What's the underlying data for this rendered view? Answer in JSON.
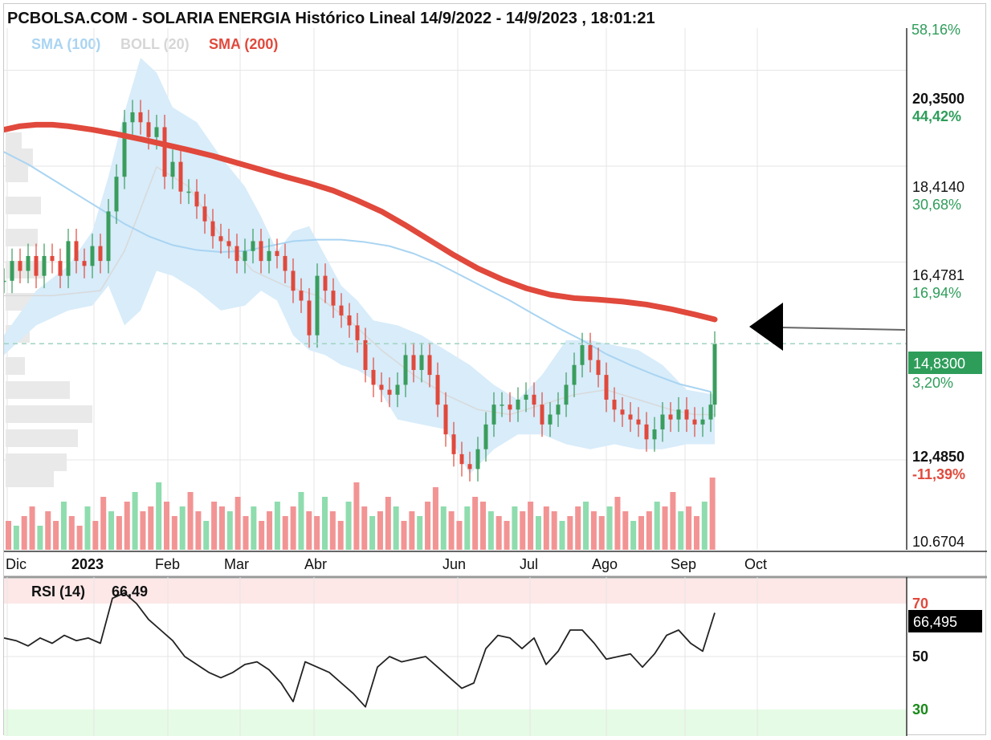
{
  "header": {
    "title": "PCBOLSA.COM - SOLARIA ENERGIA Histórico Lineal 14/9/2022 - 14/9/2023 , 18:01:21"
  },
  "legend": [
    {
      "label": "SMA (100)",
      "color": "#a9d4f2"
    },
    {
      "label": "BOLL (20)",
      "color": "#d6d6d6"
    },
    {
      "label": "SMA (200)",
      "color": "#e0493c"
    }
  ],
  "colors": {
    "up": "#3a9d5d",
    "down": "#e0493c",
    "vol_up": "#8fdcae",
    "vol_down": "#f29494",
    "band_fill": "#d8ecfa",
    "sma100": "#a9d4f2",
    "sma200": "#e0493c",
    "boll_mid": "#d9d9d9",
    "grid": "#e6e6e6",
    "rsi_line": "#222222",
    "rsi_over": "#fde7e7",
    "rsi_under": "#e5fbe5"
  },
  "chart_data": [
    {
      "type": "line",
      "name": "price",
      "period": "14/9/2022 - 14/9/2023",
      "x_tick_labels": [
        "Dic",
        "2023",
        "Feb",
        "Mar",
        "Abr",
        "Jun",
        "Jul",
        "Ago",
        "Sep",
        "Oct"
      ],
      "y_ticks": [
        {
          "value": "20,3500",
          "pct": "44,42%",
          "pct_color": "#2e9d5a",
          "bold": true
        },
        {
          "value": "18,4140",
          "pct": "30,68%",
          "pct_color": "#2e9d5a",
          "bold": false
        },
        {
          "value": "16,4781",
          "pct": "16,94%",
          "pct_color": "#2e9d5a",
          "bold": false
        },
        {
          "value": "12,4850",
          "pct": "-11,39%",
          "pct_color": "#e0493c",
          "bold": true
        },
        {
          "value": "10.6704",
          "pct": "",
          "pct_color": "#2e9d5a",
          "bold": false
        }
      ],
      "top_pct_partial": "58,16%",
      "last_price": {
        "value": "14,8300",
        "pct": "3,20%"
      },
      "ylim": [
        10.6704,
        21.2
      ],
      "series": [
        {
          "name": "SMA (100)",
          "x": [
            0,
            30,
            60,
            90,
            120,
            150,
            180,
            210,
            240,
            270,
            300,
            330,
            360,
            390,
            420,
            450,
            480,
            510,
            540,
            570,
            600,
            630,
            660,
            690,
            720,
            750,
            780,
            810,
            840,
            870,
            880
          ],
          "values": [
            18.7,
            18.45,
            18.15,
            17.85,
            17.55,
            17.25,
            17.0,
            16.82,
            16.72,
            16.68,
            16.7,
            16.8,
            16.9,
            16.93,
            16.93,
            16.88,
            16.8,
            16.65,
            16.45,
            16.2,
            15.95,
            15.7,
            15.42,
            15.15,
            14.9,
            14.62,
            14.4,
            14.2,
            14.02,
            13.9,
            13.86
          ]
        },
        {
          "name": "SMA (200)",
          "x": [
            0,
            20,
            40,
            60,
            80,
            110,
            140,
            170,
            200,
            230,
            260,
            290,
            320,
            350,
            380,
            410,
            440,
            470,
            500,
            530,
            560,
            590,
            620,
            650,
            680,
            710,
            740,
            770,
            800,
            830,
            860,
            885
          ],
          "values": [
            19.15,
            19.22,
            19.25,
            19.25,
            19.22,
            19.15,
            19.06,
            18.96,
            18.85,
            18.74,
            18.62,
            18.48,
            18.34,
            18.2,
            18.07,
            17.92,
            17.72,
            17.5,
            17.22,
            16.92,
            16.62,
            16.35,
            16.13,
            15.95,
            15.82,
            15.75,
            15.72,
            15.68,
            15.62,
            15.53,
            15.42,
            15.32
          ]
        },
        {
          "name": "BOLL upper",
          "x": [
            0,
            40,
            80,
            110,
            130,
            150,
            170,
            190,
            210,
            240,
            270,
            300,
            320,
            340,
            360,
            380,
            400,
            420,
            440,
            460,
            490,
            520,
            550,
            580,
            610,
            640,
            670,
            700,
            730,
            760,
            790,
            820,
            850,
            885
          ],
          "values": [
            15.0,
            15.9,
            16.4,
            17.1,
            18.2,
            19.5,
            20.6,
            20.3,
            19.6,
            19.3,
            18.6,
            18.0,
            17.4,
            16.7,
            17.1,
            17.2,
            16.6,
            16.0,
            15.7,
            15.3,
            15.2,
            15.0,
            14.7,
            14.4,
            14.0,
            13.7,
            14.2,
            14.9,
            14.9,
            14.8,
            14.7,
            14.4,
            13.9,
            13.8
          ]
        },
        {
          "name": "BOLL lower",
          "x": [
            0,
            40,
            80,
            110,
            130,
            150,
            170,
            190,
            210,
            240,
            270,
            300,
            320,
            340,
            360,
            380,
            400,
            420,
            440,
            460,
            490,
            520,
            550,
            580,
            610,
            640,
            670,
            700,
            730,
            760,
            790,
            820,
            850,
            885
          ],
          "values": [
            14.6,
            15.2,
            15.5,
            15.6,
            16.0,
            15.2,
            15.5,
            16.3,
            16.2,
            15.9,
            15.5,
            15.6,
            15.9,
            15.7,
            15.0,
            14.7,
            14.6,
            14.4,
            14.3,
            14.1,
            13.3,
            13.2,
            13.1,
            12.2,
            12.7,
            13.0,
            13.0,
            12.8,
            12.7,
            12.8,
            12.7,
            12.7,
            12.8,
            12.8
          ]
        },
        {
          "name": "BOLL mid",
          "x": [
            0,
            60,
            120,
            150,
            190,
            230,
            270,
            310,
            350,
            390,
            430,
            470,
            510,
            550,
            590,
            630,
            670,
            710,
            750,
            790,
            830,
            860,
            885
          ],
          "values": [
            15.8,
            15.8,
            15.9,
            16.7,
            18.4,
            18.0,
            17.0,
            16.3,
            16.0,
            15.8,
            15.3,
            14.7,
            14.2,
            13.8,
            13.5,
            13.4,
            13.6,
            13.8,
            13.9,
            13.7,
            13.5,
            13.4,
            13.4
          ]
        },
        {
          "name": "close",
          "x": [
            0,
            10,
            20,
            30,
            40,
            50,
            60,
            70,
            80,
            90,
            100,
            110,
            120,
            130,
            140,
            150,
            160,
            170,
            180,
            190,
            200,
            210,
            220,
            230,
            240,
            250,
            260,
            270,
            280,
            290,
            300,
            310,
            320,
            330,
            340,
            350,
            360,
            370,
            380,
            390,
            400,
            410,
            420,
            430,
            440,
            450,
            460,
            470,
            480,
            490,
            500,
            510,
            520,
            530,
            540,
            550,
            560,
            570,
            580,
            590,
            600,
            610,
            620,
            630,
            640,
            650,
            660,
            670,
            680,
            690,
            700,
            710,
            720,
            730,
            740,
            750,
            760,
            770,
            780,
            790,
            800,
            810,
            820,
            830,
            840,
            850,
            860,
            870,
            880,
            885
          ],
          "values": [
            16.1,
            16.5,
            16.3,
            16.6,
            16.2,
            16.6,
            16.5,
            16.2,
            16.9,
            16.5,
            16.4,
            16.8,
            16.5,
            17.5,
            18.2,
            19.3,
            19.5,
            19.3,
            19.0,
            19.2,
            18.2,
            18.5,
            17.9,
            17.9,
            17.6,
            17.3,
            17.0,
            16.9,
            16.8,
            16.5,
            16.7,
            16.9,
            16.5,
            16.7,
            16.6,
            16.3,
            15.9,
            15.7,
            15.0,
            16.2,
            15.9,
            15.6,
            15.4,
            15.2,
            14.9,
            14.3,
            14.0,
            13.9,
            13.8,
            14.0,
            14.6,
            14.3,
            14.6,
            14.2,
            13.6,
            13.0,
            12.6,
            12.4,
            12.3,
            12.7,
            13.2,
            13.6,
            13.6,
            13.5,
            13.7,
            13.8,
            13.6,
            13.2,
            13.4,
            13.6,
            14.0,
            14.4,
            14.8,
            14.5,
            14.2,
            13.7,
            13.5,
            13.4,
            13.3,
            13.2,
            12.9,
            13.1,
            13.4,
            13.3,
            13.5,
            13.3,
            13.2,
            13.3,
            13.6,
            14.83
          ]
        }
      ]
    },
    {
      "type": "bar",
      "name": "volume",
      "values": [
        6,
        5,
        7,
        9,
        5,
        8,
        6,
        10,
        7,
        5,
        9,
        6,
        11,
        8,
        7,
        10,
        12,
        8,
        9,
        14,
        10,
        7,
        9,
        12,
        8,
        6,
        10,
        9,
        8,
        11,
        7,
        9,
        6,
        8,
        10,
        7,
        9,
        12,
        8,
        7,
        11,
        8,
        6,
        10,
        14,
        9,
        7,
        8,
        11,
        9,
        6,
        8,
        7,
        10,
        13,
        9,
        8,
        6,
        9,
        11,
        10,
        8,
        7,
        6,
        9,
        8,
        10,
        7,
        9,
        8,
        6,
        7,
        9,
        10,
        8,
        7,
        9,
        11,
        8,
        6,
        7,
        8,
        10,
        9,
        12,
        8,
        9,
        7,
        10,
        15
      ]
    },
    {
      "type": "line",
      "name": "rsi",
      "legend_label": "RSI (14)",
      "legend_value": "66,49",
      "current_value": "66,495",
      "levels": [
        {
          "value": "70",
          "color": "#e0493c"
        },
        {
          "value": "50",
          "color": "#111111"
        },
        {
          "value": "30",
          "color": "#1a8a1a"
        }
      ],
      "ylim": [
        20,
        80
      ],
      "x": [
        0,
        15,
        30,
        45,
        60,
        75,
        90,
        105,
        120,
        135,
        150,
        165,
        180,
        195,
        210,
        225,
        240,
        255,
        270,
        285,
        300,
        315,
        330,
        345,
        360,
        375,
        390,
        405,
        420,
        435,
        450,
        465,
        480,
        495,
        510,
        525,
        540,
        555,
        570,
        585,
        600,
        615,
        630,
        645,
        660,
        675,
        690,
        705,
        720,
        735,
        750,
        765,
        780,
        795,
        810,
        825,
        840,
        855,
        870,
        885
      ],
      "values": [
        57,
        56,
        54,
        57,
        55,
        58,
        56,
        57,
        55,
        72,
        74,
        70,
        64,
        60,
        56,
        50,
        47,
        44,
        42,
        44,
        47,
        48,
        45,
        40,
        33,
        48,
        46,
        44,
        40,
        36,
        31,
        46,
        50,
        48,
        49,
        50,
        46,
        42,
        38,
        40,
        53,
        58,
        57,
        53,
        57,
        47,
        52,
        60,
        60,
        55,
        49,
        50,
        51,
        46,
        51,
        58,
        60,
        55,
        52,
        66.5
      ]
    }
  ]
}
